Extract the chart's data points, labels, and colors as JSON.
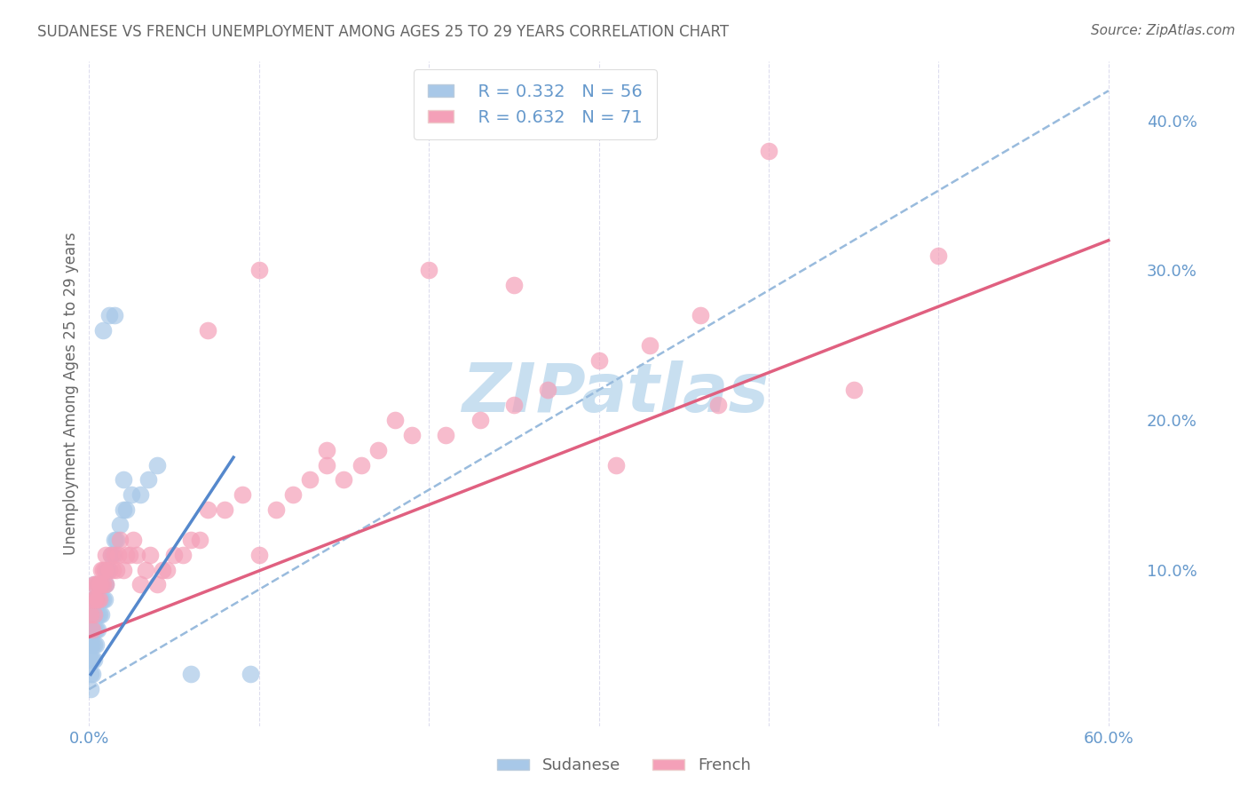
{
  "title": "SUDANESE VS FRENCH UNEMPLOYMENT AMONG AGES 25 TO 29 YEARS CORRELATION CHART",
  "source": "Source: ZipAtlas.com",
  "ylabel": "Unemployment Among Ages 25 to 29 years",
  "xlim": [
    0.0,
    0.62
  ],
  "ylim": [
    -0.005,
    0.44
  ],
  "xtick_positions": [
    0.0,
    0.1,
    0.2,
    0.3,
    0.4,
    0.5,
    0.6
  ],
  "xtick_labels": [
    "0.0%",
    "",
    "",
    "",
    "",
    "",
    "60.0%"
  ],
  "ytick_positions": [
    0.0,
    0.1,
    0.2,
    0.3,
    0.4
  ],
  "ytick_labels": [
    "",
    "10.0%",
    "20.0%",
    "30.0%",
    "40.0%"
  ],
  "legend_r_sudanese": "R = 0.332",
  "legend_n_sudanese": "N = 56",
  "legend_r_french": "R = 0.632",
  "legend_n_french": "N = 71",
  "sudanese_color": "#a8c8e8",
  "french_color": "#f4a0b8",
  "sudanese_line_color": "#5588cc",
  "french_line_color": "#e06080",
  "dashed_line_color": "#99bbdd",
  "watermark_color": "#c8dff0",
  "title_color": "#666666",
  "axis_color": "#6699cc",
  "grid_color": "#ddddee",
  "background_color": "#ffffff",
  "sudanese_x": [
    0.001,
    0.001,
    0.001,
    0.001,
    0.001,
    0.002,
    0.002,
    0.002,
    0.002,
    0.002,
    0.002,
    0.003,
    0.003,
    0.003,
    0.003,
    0.003,
    0.003,
    0.004,
    0.004,
    0.004,
    0.004,
    0.005,
    0.005,
    0.005,
    0.005,
    0.006,
    0.006,
    0.006,
    0.007,
    0.007,
    0.007,
    0.008,
    0.008,
    0.009,
    0.009,
    0.01,
    0.01,
    0.011,
    0.012,
    0.013,
    0.014,
    0.015,
    0.016,
    0.018,
    0.02,
    0.022,
    0.025,
    0.03,
    0.035,
    0.04,
    0.008,
    0.012,
    0.015,
    0.02,
    0.06,
    0.095
  ],
  "sudanese_y": [
    0.02,
    0.03,
    0.04,
    0.05,
    0.06,
    0.03,
    0.04,
    0.05,
    0.06,
    0.07,
    0.08,
    0.04,
    0.05,
    0.06,
    0.07,
    0.08,
    0.09,
    0.05,
    0.06,
    0.07,
    0.08,
    0.06,
    0.07,
    0.08,
    0.09,
    0.07,
    0.08,
    0.09,
    0.07,
    0.08,
    0.09,
    0.08,
    0.09,
    0.08,
    0.09,
    0.09,
    0.1,
    0.1,
    0.1,
    0.11,
    0.11,
    0.12,
    0.12,
    0.13,
    0.14,
    0.14,
    0.15,
    0.15,
    0.16,
    0.17,
    0.26,
    0.27,
    0.27,
    0.16,
    0.03,
    0.03
  ],
  "french_x": [
    0.001,
    0.002,
    0.002,
    0.003,
    0.003,
    0.003,
    0.004,
    0.004,
    0.005,
    0.005,
    0.006,
    0.006,
    0.007,
    0.007,
    0.008,
    0.008,
    0.009,
    0.01,
    0.01,
    0.012,
    0.013,
    0.014,
    0.015,
    0.016,
    0.017,
    0.018,
    0.02,
    0.022,
    0.024,
    0.026,
    0.028,
    0.03,
    0.033,
    0.036,
    0.04,
    0.043,
    0.046,
    0.05,
    0.055,
    0.06,
    0.065,
    0.07,
    0.08,
    0.09,
    0.1,
    0.11,
    0.12,
    0.13,
    0.14,
    0.15,
    0.16,
    0.17,
    0.19,
    0.21,
    0.23,
    0.25,
    0.27,
    0.3,
    0.33,
    0.36,
    0.4,
    0.45,
    0.5,
    0.07,
    0.1,
    0.14,
    0.18,
    0.2,
    0.25,
    0.31,
    0.37
  ],
  "french_y": [
    0.07,
    0.06,
    0.08,
    0.07,
    0.08,
    0.09,
    0.08,
    0.09,
    0.08,
    0.09,
    0.08,
    0.09,
    0.09,
    0.1,
    0.09,
    0.1,
    0.1,
    0.09,
    0.11,
    0.1,
    0.11,
    0.1,
    0.11,
    0.1,
    0.11,
    0.12,
    0.1,
    0.11,
    0.11,
    0.12,
    0.11,
    0.09,
    0.1,
    0.11,
    0.09,
    0.1,
    0.1,
    0.11,
    0.11,
    0.12,
    0.12,
    0.14,
    0.14,
    0.15,
    0.11,
    0.14,
    0.15,
    0.16,
    0.17,
    0.16,
    0.17,
    0.18,
    0.19,
    0.19,
    0.2,
    0.21,
    0.22,
    0.24,
    0.25,
    0.27,
    0.38,
    0.22,
    0.31,
    0.26,
    0.3,
    0.18,
    0.2,
    0.3,
    0.29,
    0.17,
    0.21
  ],
  "sudanese_line_x": [
    0.001,
    0.085
  ],
  "sudanese_line_y": [
    0.03,
    0.175
  ],
  "dashed_line_x": [
    0.0,
    0.6
  ],
  "dashed_line_y": [
    0.02,
    0.42
  ],
  "french_line_x": [
    0.0,
    0.6
  ],
  "french_line_y": [
    0.055,
    0.32
  ]
}
